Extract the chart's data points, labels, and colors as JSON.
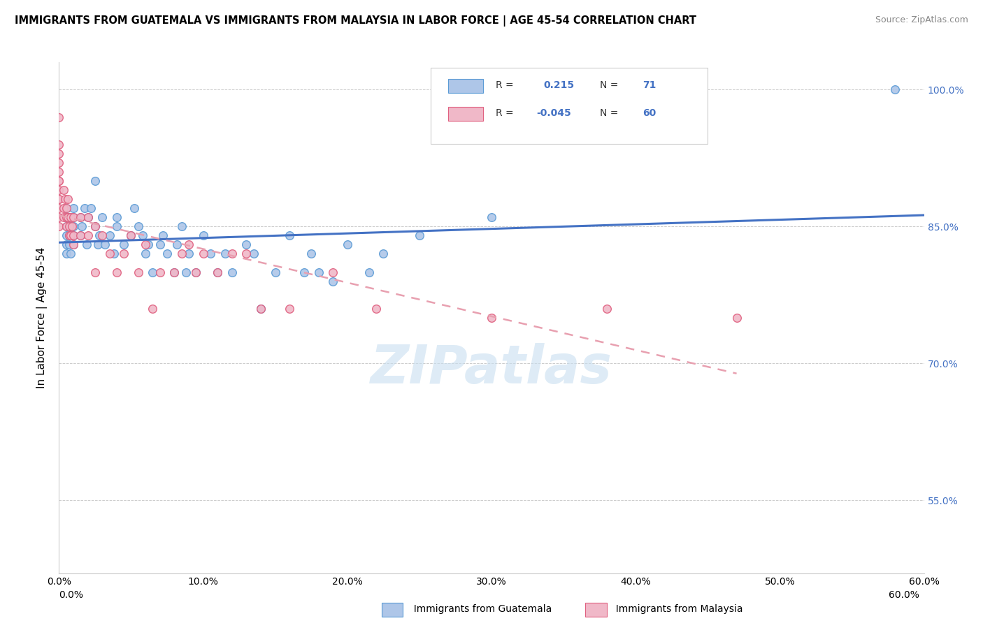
{
  "title": "IMMIGRANTS FROM GUATEMALA VS IMMIGRANTS FROM MALAYSIA IN LABOR FORCE | AGE 45-54 CORRELATION CHART",
  "source": "Source: ZipAtlas.com",
  "ylabel": "In Labor Force | Age 45-54",
  "xlim": [
    0.0,
    0.6
  ],
  "ylim": [
    0.47,
    1.03
  ],
  "yticks": [
    0.55,
    0.7,
    0.85,
    1.0
  ],
  "ytick_labels": [
    "55.0%",
    "70.0%",
    "85.0%",
    "100.0%"
  ],
  "xticks": [
    0.0,
    0.1,
    0.2,
    0.3,
    0.4,
    0.5,
    0.6
  ],
  "xtick_labels": [
    "0.0%",
    "10.0%",
    "20.0%",
    "30.0%",
    "40.0%",
    "50.0%",
    "60.0%"
  ],
  "guatemala_R": 0.215,
  "guatemala_N": 71,
  "malaysia_R": -0.045,
  "malaysia_N": 60,
  "guatemala_color": "#aec6e8",
  "malaysia_color": "#f0b8c8",
  "guatemala_edge_color": "#5b9bd5",
  "malaysia_edge_color": "#e06080",
  "guatemala_line_color": "#4472c4",
  "malaysia_line_color": "#e8a0b0",
  "watermark_color": "#c8dff0",
  "watermark": "ZIPatlas",
  "guatemala_x": [
    0.005,
    0.005,
    0.005,
    0.005,
    0.005,
    0.005,
    0.007,
    0.007,
    0.007,
    0.008,
    0.008,
    0.009,
    0.01,
    0.01,
    0.01,
    0.01,
    0.01,
    0.015,
    0.015,
    0.016,
    0.018,
    0.019,
    0.02,
    0.022,
    0.025,
    0.025,
    0.027,
    0.028,
    0.03,
    0.032,
    0.035,
    0.038,
    0.04,
    0.04,
    0.045,
    0.05,
    0.052,
    0.055,
    0.058,
    0.06,
    0.062,
    0.065,
    0.07,
    0.072,
    0.075,
    0.08,
    0.082,
    0.085,
    0.088,
    0.09,
    0.095,
    0.1,
    0.105,
    0.11,
    0.115,
    0.12,
    0.13,
    0.135,
    0.14,
    0.15,
    0.16,
    0.17,
    0.175,
    0.18,
    0.19,
    0.2,
    0.215,
    0.225,
    0.25,
    0.3,
    0.58
  ],
  "guatemala_y": [
    0.84,
    0.86,
    0.87,
    0.83,
    0.82,
    0.85,
    0.86,
    0.84,
    0.83,
    0.82,
    0.85,
    0.84,
    0.87,
    0.86,
    0.85,
    0.84,
    0.83,
    0.86,
    0.84,
    0.85,
    0.87,
    0.83,
    0.86,
    0.87,
    0.9,
    0.85,
    0.83,
    0.84,
    0.86,
    0.83,
    0.84,
    0.82,
    0.85,
    0.86,
    0.83,
    0.84,
    0.87,
    0.85,
    0.84,
    0.82,
    0.83,
    0.8,
    0.83,
    0.84,
    0.82,
    0.8,
    0.83,
    0.85,
    0.8,
    0.82,
    0.8,
    0.84,
    0.82,
    0.8,
    0.82,
    0.8,
    0.83,
    0.82,
    0.76,
    0.8,
    0.84,
    0.8,
    0.82,
    0.8,
    0.79,
    0.83,
    0.8,
    0.82,
    0.84,
    0.86,
    1.0
  ],
  "malaysia_x": [
    0.0,
    0.0,
    0.0,
    0.0,
    0.0,
    0.0,
    0.0,
    0.0,
    0.0,
    0.0,
    0.0,
    0.0,
    0.0,
    0.003,
    0.003,
    0.003,
    0.004,
    0.005,
    0.005,
    0.005,
    0.006,
    0.006,
    0.007,
    0.007,
    0.008,
    0.008,
    0.009,
    0.01,
    0.01,
    0.01,
    0.015,
    0.015,
    0.02,
    0.02,
    0.025,
    0.025,
    0.03,
    0.035,
    0.04,
    0.045,
    0.05,
    0.055,
    0.06,
    0.065,
    0.07,
    0.08,
    0.085,
    0.09,
    0.095,
    0.1,
    0.11,
    0.12,
    0.13,
    0.14,
    0.16,
    0.19,
    0.22,
    0.3,
    0.38,
    0.47
  ],
  "malaysia_y": [
    0.97,
    0.94,
    0.93,
    0.92,
    0.91,
    0.9,
    0.89,
    0.88,
    0.87,
    0.86,
    0.85,
    0.9,
    0.88,
    0.89,
    0.87,
    0.86,
    0.88,
    0.87,
    0.86,
    0.85,
    0.86,
    0.88,
    0.85,
    0.84,
    0.86,
    0.84,
    0.85,
    0.86,
    0.84,
    0.83,
    0.86,
    0.84,
    0.86,
    0.84,
    0.85,
    0.8,
    0.84,
    0.82,
    0.8,
    0.82,
    0.84,
    0.8,
    0.83,
    0.76,
    0.8,
    0.8,
    0.82,
    0.83,
    0.8,
    0.82,
    0.8,
    0.82,
    0.82,
    0.76,
    0.76,
    0.8,
    0.76,
    0.75,
    0.76,
    0.75
  ]
}
